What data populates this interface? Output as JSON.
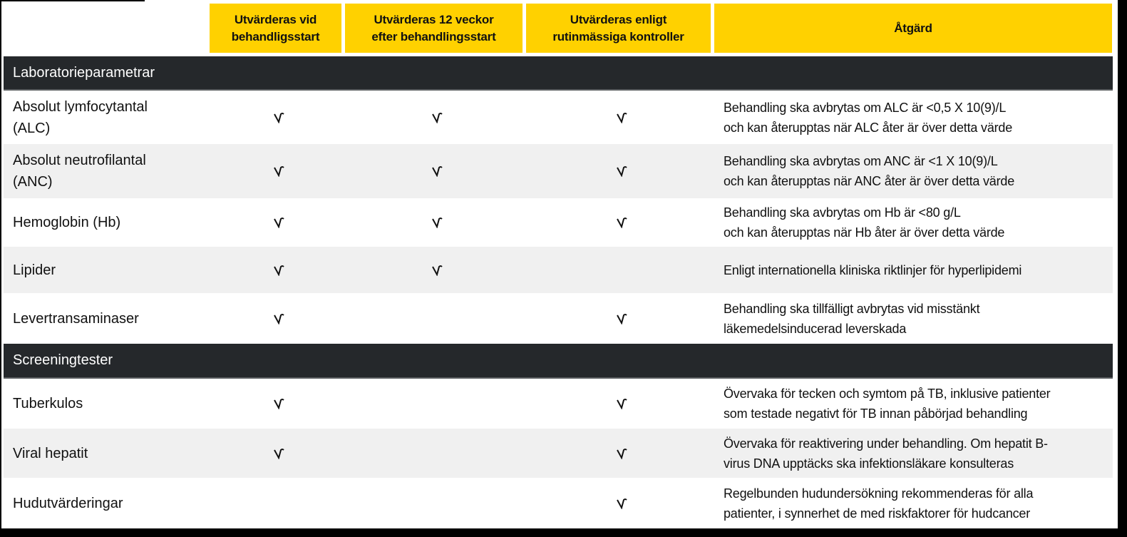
{
  "colors": {
    "header_bg": "#ffd100",
    "section_bg": "#25282b",
    "row_alt_bg": "#f0f0f0",
    "text": "#111111"
  },
  "columns": [
    {
      "label": "Utvärderas vid\nbehandligsstart"
    },
    {
      "label": "Utvärderas 12 veckor\nefter behandlingsstart"
    },
    {
      "label": "Utvärderas enligt\nrutinmässiga kontroller"
    },
    {
      "label": "Åtgärd"
    }
  ],
  "check_icon": "check-icon",
  "sections": [
    {
      "title": "Laboratorieparametrar",
      "rows": [
        {
          "name": "Absolut lymfocytantal\n(ALC)",
          "start": true,
          "week12": true,
          "routine": true,
          "action": "Behandling ska avbrytas om ALC är <0,5 X 10(9)/L\noch kan återupptas när ALC åter är över detta värde"
        },
        {
          "name": "Absolut neutrofilantal\n(ANC)",
          "start": true,
          "week12": true,
          "routine": true,
          "action": "Behandling ska avbrytas om ANC är <1 X 10(9)/L\noch kan återupptas när ANC åter är över detta värde"
        },
        {
          "name": "Hemoglobin (Hb)",
          "start": true,
          "week12": true,
          "routine": true,
          "action": "Behandling ska avbrytas om Hb är <80 g/L\noch kan återupptas när Hb åter är över detta värde"
        },
        {
          "name": "Lipider",
          "start": true,
          "week12": true,
          "routine": false,
          "action": "Enligt internationella kliniska riktlinjer för hyperlipidemi"
        },
        {
          "name": "Levertransaminaser",
          "start": true,
          "week12": false,
          "routine": true,
          "action": "Behandling ska  tillfälligt avbrytas vid misstänkt\nläkemedelsinducerad leverskada"
        }
      ]
    },
    {
      "title": "Screeningtester",
      "rows": [
        {
          "name": "Tuberkulos",
          "start": true,
          "week12": false,
          "routine": true,
          "action": "Övervaka för tecken och symtom på TB, inklusive patienter\nsom testade negativt för TB innan påbörjad behandling"
        },
        {
          "name": "Viral hepatit",
          "start": true,
          "week12": false,
          "routine": true,
          "action": "Övervaka för reaktivering under behandling. Om hepatit B-\nvirus DNA upptäcks ska infektionsläkare konsulteras"
        },
        {
          "name": "Hudutvärderingar",
          "start": false,
          "week12": false,
          "routine": true,
          "action": "Regelbunden hudundersökning rekommenderas för alla\npatienter, i synnerhet de med riskfaktorer för hudcancer"
        }
      ]
    }
  ]
}
